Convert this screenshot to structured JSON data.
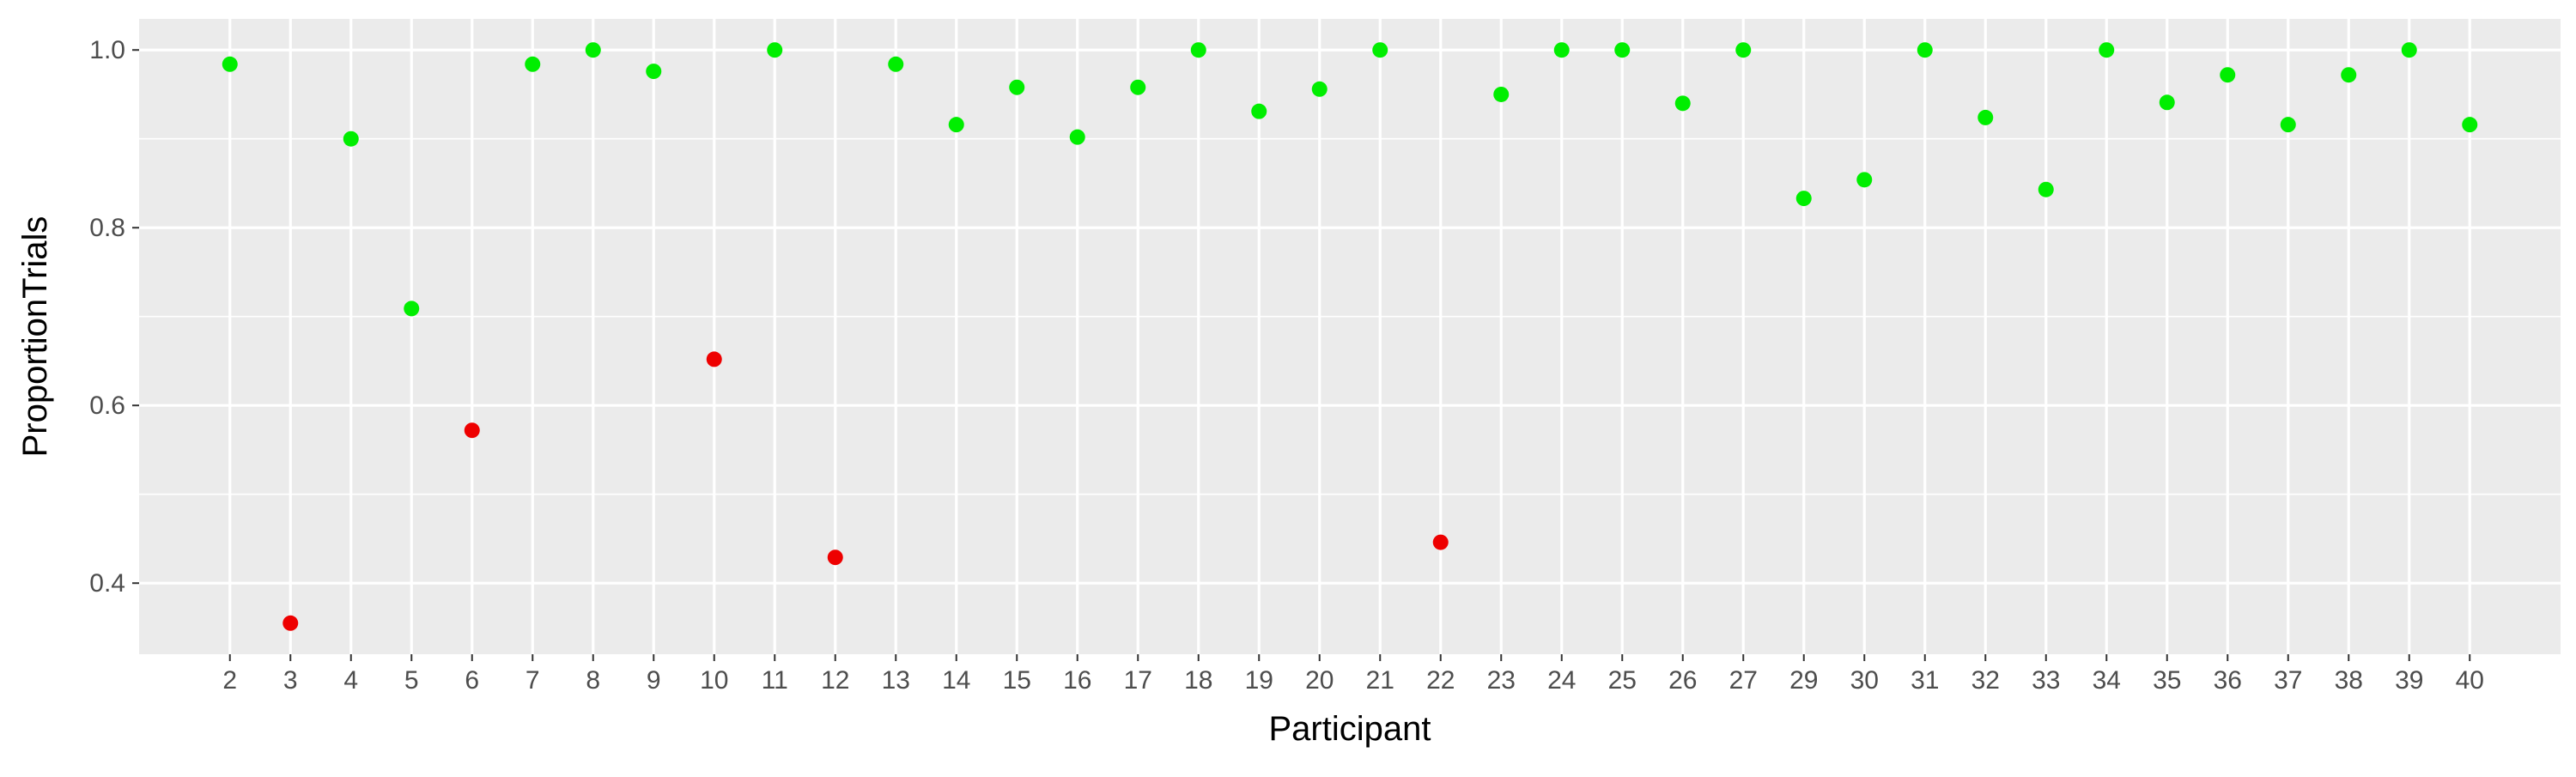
{
  "chart_data": {
    "type": "scatter",
    "title": "",
    "xlabel": "Participant",
    "ylabel": "ProportionTrials",
    "ylim": [
      0.32,
      1.035
    ],
    "yticks": [
      0.4,
      0.6,
      0.8,
      1.0
    ],
    "ytick_labels": [
      "0.4",
      "0.6",
      "0.8",
      "1.0"
    ],
    "grid": true,
    "legend": "none",
    "colors": {
      "panel_background": "#ebebeb",
      "grid_line": "#ffffff",
      "green": "#00ee00",
      "red": "#ee0000"
    },
    "categories": [
      "2",
      "3",
      "4",
      "5",
      "6",
      "7",
      "8",
      "9",
      "10",
      "11",
      "12",
      "13",
      "14",
      "15",
      "16",
      "17",
      "18",
      "19",
      "20",
      "21",
      "22",
      "23",
      "24",
      "25",
      "26",
      "27",
      "29",
      "30",
      "31",
      "32",
      "33",
      "34",
      "35",
      "36",
      "37",
      "38",
      "39",
      "40"
    ],
    "values": [
      0.984,
      0.355,
      0.9,
      0.709,
      0.572,
      0.984,
      1.0,
      0.976,
      0.652,
      1.0,
      0.429,
      0.984,
      0.916,
      0.958,
      0.902,
      0.958,
      1.0,
      0.931,
      0.956,
      1.0,
      0.446,
      0.95,
      1.0,
      1.0,
      0.94,
      1.0,
      0.833,
      0.854,
      1.0,
      0.924,
      0.843,
      1.0,
      0.941,
      0.972,
      0.916,
      0.972,
      1.0,
      0.916
    ],
    "point_colors": [
      "green",
      "red",
      "green",
      "green",
      "red",
      "green",
      "green",
      "green",
      "red",
      "green",
      "red",
      "green",
      "green",
      "green",
      "green",
      "green",
      "green",
      "green",
      "green",
      "green",
      "red",
      "green",
      "green",
      "green",
      "green",
      "green",
      "green",
      "green",
      "green",
      "green",
      "green",
      "green",
      "green",
      "green",
      "green",
      "green",
      "green",
      "green"
    ]
  }
}
